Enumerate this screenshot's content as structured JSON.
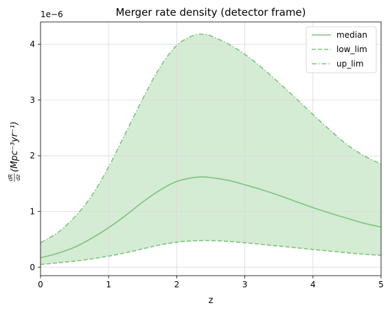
{
  "chart_data": {
    "type": "area",
    "title": "Merger rate density (detector frame)",
    "xlabel": "z",
    "ylabel_parts": {
      "frac_num": "dR",
      "frac_den": "dz",
      "rest": "(Mpc⁻³yr⁻¹)"
    },
    "offset_text": "1e−6",
    "xlim": [
      0,
      5
    ],
    "ylim": [
      -1.5e-07,
      4.4e-06
    ],
    "x_ticks": [
      0,
      1,
      2,
      3,
      4,
      5
    ],
    "x_tick_labels": [
      "0",
      "1",
      "2",
      "3",
      "4",
      "5"
    ],
    "y_ticks": [
      0,
      1e-06,
      2e-06,
      3e-06,
      4e-06
    ],
    "y_tick_labels": [
      "0",
      "1",
      "2",
      "3",
      "4"
    ],
    "grid": true,
    "legend_position": "top-right",
    "colors": {
      "line": "#7cc47c",
      "fill": "#d4ebd4",
      "grid": "#d9d9d9"
    },
    "x": [
      0,
      0.25,
      0.5,
      0.75,
      1.0,
      1.25,
      1.5,
      1.75,
      2.0,
      2.25,
      2.4,
      2.5,
      2.75,
      3.0,
      3.25,
      3.5,
      3.75,
      4.0,
      4.25,
      4.5,
      4.75,
      5.0
    ],
    "series": [
      {
        "name": "median",
        "style": "solid",
        "values": [
          1.7e-07,
          2.5e-07,
          3.6e-07,
          5.2e-07,
          7.1e-07,
          9.3e-07,
          1.17e-06,
          1.38e-06,
          1.54e-06,
          1.61e-06,
          1.62e-06,
          1.61e-06,
          1.56e-06,
          1.48e-06,
          1.39e-06,
          1.29e-06,
          1.18e-06,
          1.07e-06,
          9.7e-07,
          8.8e-07,
          7.9e-07,
          7.2e-07
        ]
      },
      {
        "name": "low_lim",
        "style": "dashed",
        "values": [
          5e-08,
          8e-08,
          1.1e-07,
          1.5e-07,
          2e-07,
          2.6e-07,
          3.3e-07,
          4e-07,
          4.5e-07,
          4.75e-07,
          4.8e-07,
          4.8e-07,
          4.65e-07,
          4.4e-07,
          4.1e-07,
          3.8e-07,
          3.5e-07,
          3.2e-07,
          2.9e-07,
          2.6e-07,
          2.35e-07,
          2.15e-07
        ]
      },
      {
        "name": "up_lim",
        "style": "dashdot",
        "values": [
          4.4e-07,
          6.2e-07,
          9e-07,
          1.28e-06,
          1.8e-06,
          2.41e-06,
          3.02e-06,
          3.58e-06,
          3.98e-06,
          4.16e-06,
          4.18e-06,
          4.15e-06,
          4.01e-06,
          3.82e-06,
          3.58e-06,
          3.31e-06,
          3.03e-06,
          2.74e-06,
          2.46e-06,
          2.2e-06,
          2e-06,
          1.85e-06
        ]
      }
    ]
  }
}
